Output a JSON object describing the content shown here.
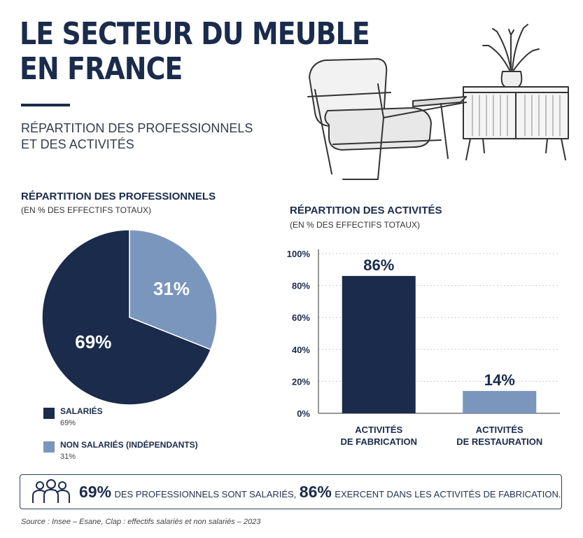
{
  "header": {
    "title_lines": [
      "LE SECTEUR DU MEUBLE",
      "EN FRANCE"
    ],
    "subtitle_lines": [
      "RÉPARTITION DES PROFESSIONNELS",
      "ET DES ACTIVITÉS"
    ]
  },
  "colors": {
    "navy": "#1a2b4c",
    "light_blue": "#7b96bd",
    "grid": "#c9c9c9"
  },
  "chart_data": [
    {
      "type": "pie",
      "title": "RÉPARTITION DES PROFESSIONNELS",
      "subtitle": "(EN % DES EFFECTIFS TOTAUX)",
      "slices": [
        {
          "label": "NON SALARIÉS (INDÉPENDANTS)",
          "value": 31,
          "display": "31%",
          "color": "#7b96bd"
        },
        {
          "label": "SALARIÉS",
          "value": 69,
          "display": "69%",
          "color": "#1a2b4c"
        }
      ],
      "legend": [
        {
          "label": "SALARIÉS",
          "value": "69%",
          "color": "#1a2b4c"
        },
        {
          "label": "NON SALARIÉS (INDÉPENDANTS)",
          "value": "31%",
          "color": "#7b96bd"
        }
      ]
    },
    {
      "type": "bar",
      "title": "RÉPARTITION DES ACTIVITÉS",
      "subtitle": "(EN % DES EFFECTIFS TOTAUX)",
      "categories": [
        [
          "ACTIVITÉS",
          "DE FABRICATION"
        ],
        [
          "ACTIVITÉS",
          "DE RESTAURATION"
        ]
      ],
      "values": [
        86,
        14
      ],
      "labels": [
        "86%",
        "14%"
      ],
      "colors": [
        "#1a2b4c",
        "#7b96bd"
      ],
      "ylim": [
        0,
        100
      ],
      "yticks": [
        0,
        20,
        40,
        60,
        80,
        100
      ],
      "ytick_labels": [
        "0%",
        "20%",
        "40%",
        "60%",
        "80%",
        "100%"
      ],
      "grid": true
    }
  ],
  "banner": {
    "icon": "people-group-icon",
    "stat1": "69%",
    "text1": "DES PROFESSIONNELS SONT SALARIÉS,",
    "stat2": "86%",
    "text2": "EXERCENT DANS LES ACTIVITÉS DE FABRICATION."
  },
  "footer": {
    "source": "Source : Insee – Esane, Clap : effectifs salariés et non salariés – 2023"
  }
}
